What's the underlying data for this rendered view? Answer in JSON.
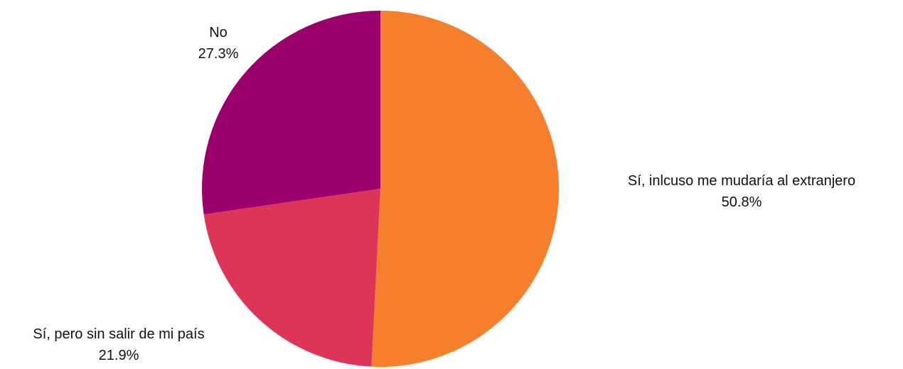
{
  "chart_data": {
    "type": "pie",
    "title": "",
    "slices": [
      {
        "label": "Sí, inlcuso me mudaría al extranjero",
        "value": 50.8,
        "value_label": "50.8%",
        "color": "#F57F2C"
      },
      {
        "label": "Sí, pero sin salir de mi país",
        "value": 21.9,
        "value_label": "21.9%",
        "color": "#DD3558"
      },
      {
        "label": "No",
        "value": 27.3,
        "value_label": "27.3%",
        "color": "#9B006C"
      }
    ],
    "start_angle": "12 o'clock",
    "direction": "clockwise",
    "legend": "none",
    "labels": "outside"
  }
}
